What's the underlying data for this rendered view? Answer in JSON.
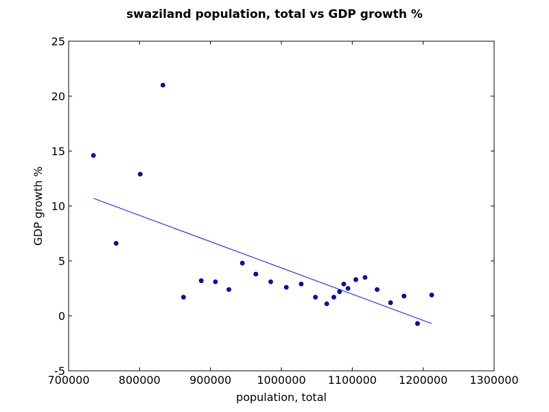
{
  "chart_data": {
    "type": "scatter",
    "title": "swaziland population, total vs GDP growth %",
    "xlabel": "population, total",
    "ylabel": "GDP growth %",
    "xlim": [
      700000,
      1300000
    ],
    "ylim": [
      -5,
      25
    ],
    "xticks": [
      700000,
      800000,
      900000,
      1000000,
      1100000,
      1200000,
      1300000
    ],
    "yticks": [
      -5,
      0,
      5,
      10,
      15,
      20,
      25
    ],
    "grid": false,
    "series": [
      {
        "color": "#0000ff",
        "points": [
          {
            "x": 735000,
            "y": 14.6
          },
          {
            "x": 767000,
            "y": 6.6
          },
          {
            "x": 801000,
            "y": 12.9
          },
          {
            "x": 833000,
            "y": 21.0
          },
          {
            "x": 862000,
            "y": 1.7
          },
          {
            "x": 887000,
            "y": 3.2
          },
          {
            "x": 907000,
            "y": 3.1
          },
          {
            "x": 926000,
            "y": 2.4
          },
          {
            "x": 945000,
            "y": 4.8
          },
          {
            "x": 964000,
            "y": 3.8
          },
          {
            "x": 985000,
            "y": 3.1
          },
          {
            "x": 1007000,
            "y": 2.6
          },
          {
            "x": 1028000,
            "y": 2.9
          },
          {
            "x": 1048000,
            "y": 1.7
          },
          {
            "x": 1064000,
            "y": 1.1
          },
          {
            "x": 1074000,
            "y": 1.7
          },
          {
            "x": 1082000,
            "y": 2.2
          },
          {
            "x": 1088000,
            "y": 2.9
          },
          {
            "x": 1094000,
            "y": 2.5
          },
          {
            "x": 1105000,
            "y": 3.3
          },
          {
            "x": 1118000,
            "y": 3.5
          },
          {
            "x": 1135000,
            "y": 2.4
          },
          {
            "x": 1154000,
            "y": 1.2
          },
          {
            "x": 1173000,
            "y": 1.8
          },
          {
            "x": 1192000,
            "y": -0.7
          },
          {
            "x": 1212000,
            "y": 1.9
          }
        ]
      }
    ],
    "trendline": {
      "color": "#0000ff",
      "start": {
        "x": 735000,
        "y": 10.7
      },
      "end": {
        "x": 1212000,
        "y": -0.7
      }
    }
  }
}
